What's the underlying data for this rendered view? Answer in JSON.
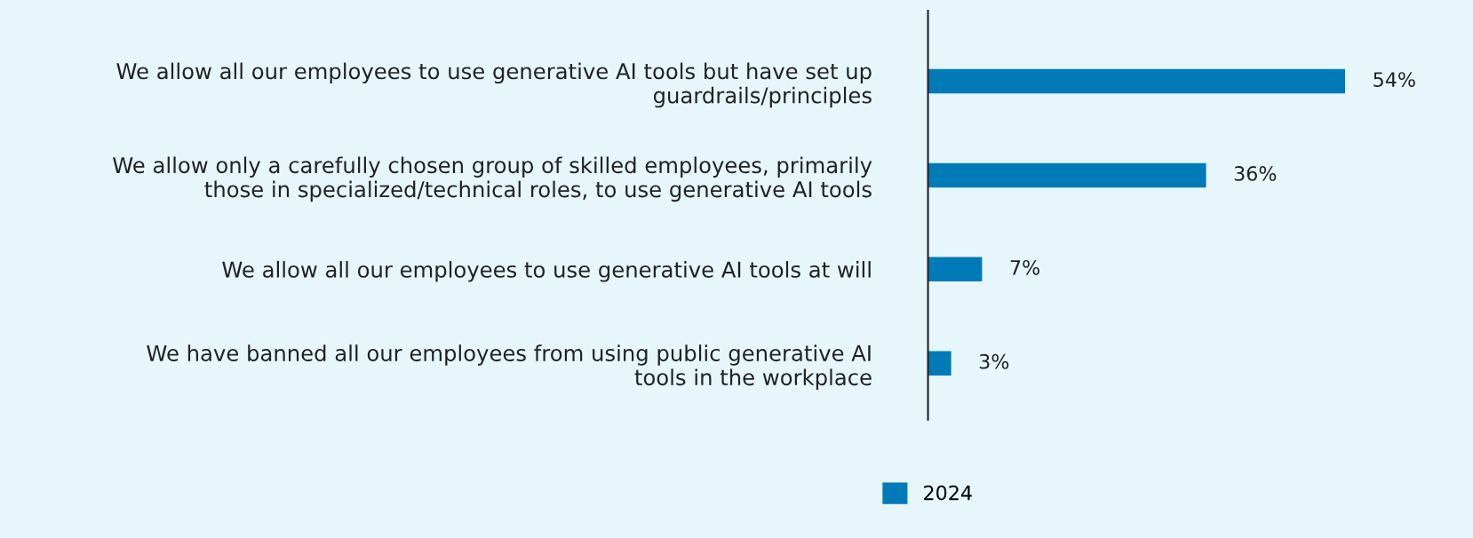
{
  "chart_data": {
    "type": "bar",
    "orientation": "horizontal",
    "categories": [
      "We allow all our employees to use generative AI tools but have set up\nguardrails/principles",
      "We allow only a carefully chosen group of skilled employees, primarily\nthose in specialized/technical roles, to use generative AI tools",
      "We allow all our employees to use generative AI tools at will",
      "We have banned all our employees from using public generative AI\ntools in the workplace"
    ],
    "series": [
      {
        "name": "2024",
        "color": "#007bb8",
        "values": [
          54,
          36,
          7,
          3
        ],
        "value_labels": [
          "54%",
          "36%",
          "7%",
          "3%"
        ]
      }
    ],
    "legend": "bottom",
    "grid": false
  }
}
